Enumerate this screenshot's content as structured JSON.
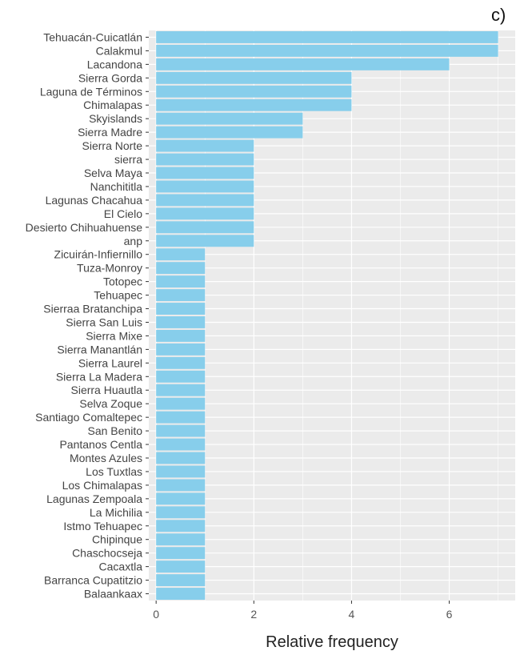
{
  "panel_label": "c)",
  "chart_data": {
    "type": "bar",
    "orientation": "horizontal",
    "title": "",
    "xlabel": "Relative frequency",
    "ylabel": "",
    "xlim": [
      -0.15,
      7.35
    ],
    "xticks": [
      0,
      2,
      4,
      6
    ],
    "grid": true,
    "colors": {
      "bar": "#87CEEB",
      "panel": "#EBEBEB",
      "grid_major": "#FFFFFF"
    },
    "categories": [
      "Tehuacán-Cuicatlán",
      "Calakmul",
      "Lacandona",
      "Sierra Gorda",
      "Laguna de Términos",
      "Chimalapas",
      "Skyislands",
      "Sierra Madre",
      "Sierra Norte",
      "sierra",
      "Selva Maya",
      "Nanchititla",
      "Lagunas Chacahua",
      "El Cielo",
      "Desierto Chihuahuense",
      "anp",
      "Zicuirán-Infiernillo",
      "Tuza-Monroy",
      "Totopec",
      "Tehuapec",
      "Sierraa Bratanchipa",
      "Sierra San Luis",
      "Sierra Mixe",
      "Sierra Manantlán",
      "Sierra Laurel",
      "Sierra La Madera",
      "Sierra Huautla",
      "Selva Zoque",
      "Santiago Comaltepec",
      "San Benito",
      "Pantanos Centla",
      "Montes Azules",
      "Los Tuxtlas",
      "Los Chimalapas",
      "Lagunas Zempoala",
      "La Michilia",
      "Istmo Tehuapec",
      "Chipinque",
      "Chaschocseja",
      "Cacaxtla",
      "Barranca Cupatitzio",
      "Balaankaax"
    ],
    "values": [
      7,
      7,
      6,
      4,
      4,
      4,
      3,
      3,
      2,
      2,
      2,
      2,
      2,
      2,
      2,
      2,
      1,
      1,
      1,
      1,
      1,
      1,
      1,
      1,
      1,
      1,
      1,
      1,
      1,
      1,
      1,
      1,
      1,
      1,
      1,
      1,
      1,
      1,
      1,
      1,
      1,
      1
    ]
  }
}
